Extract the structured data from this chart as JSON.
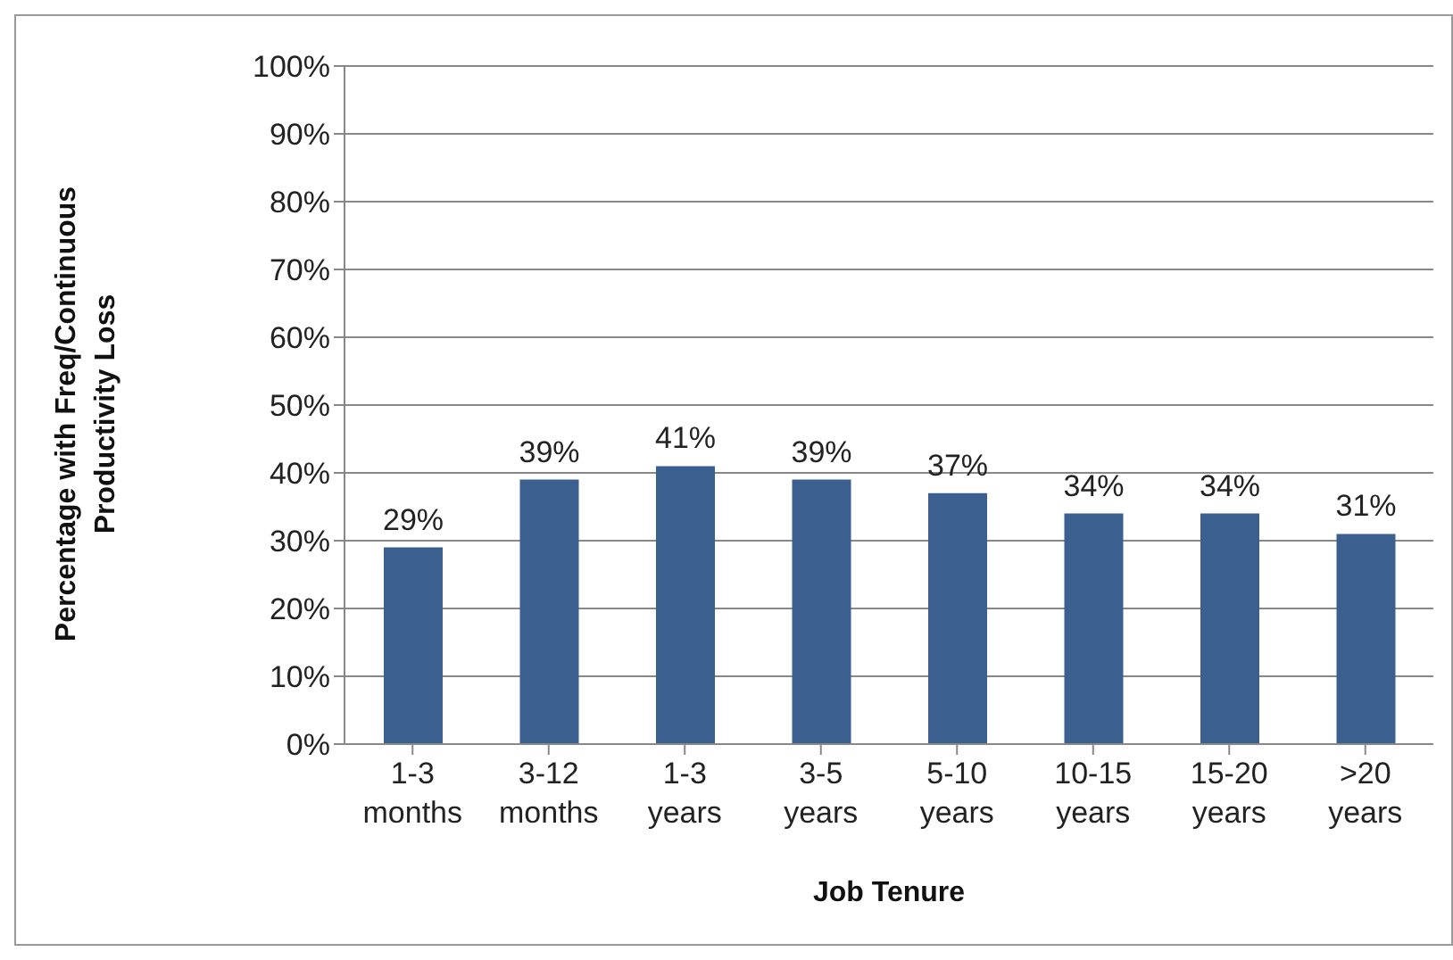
{
  "chart_data": {
    "type": "bar",
    "xlabel": "Job Tenure",
    "ylabel": "Percentage with Freq/Continuous Productivity Loss",
    "categories": [
      "1-3 months",
      "3-12 months",
      "1-3 years",
      "3-5 years",
      "5-10 years",
      "10-15 years",
      "15-20 years",
      ">20 years"
    ],
    "values": [
      29,
      39,
      41,
      39,
      37,
      34,
      34,
      31
    ],
    "value_labels": [
      "29%",
      "39%",
      "41%",
      "39%",
      "37%",
      "34%",
      "34%",
      "31%"
    ],
    "color": "#3b5f8e",
    "ylim": [
      0,
      100
    ],
    "yticks": [
      {
        "value": 0,
        "label": "0%"
      },
      {
        "value": 10,
        "label": "10%"
      },
      {
        "value": 20,
        "label": "20%"
      },
      {
        "value": 30,
        "label": "30%"
      },
      {
        "value": 40,
        "label": "40%"
      },
      {
        "value": 50,
        "label": "50%"
      },
      {
        "value": 60,
        "label": "60%"
      },
      {
        "value": 70,
        "label": "70%"
      },
      {
        "value": 80,
        "label": "80%"
      },
      {
        "value": 90,
        "label": "90%"
      },
      {
        "value": 100,
        "label": "100%"
      }
    ],
    "grid": "y",
    "legend": false
  }
}
